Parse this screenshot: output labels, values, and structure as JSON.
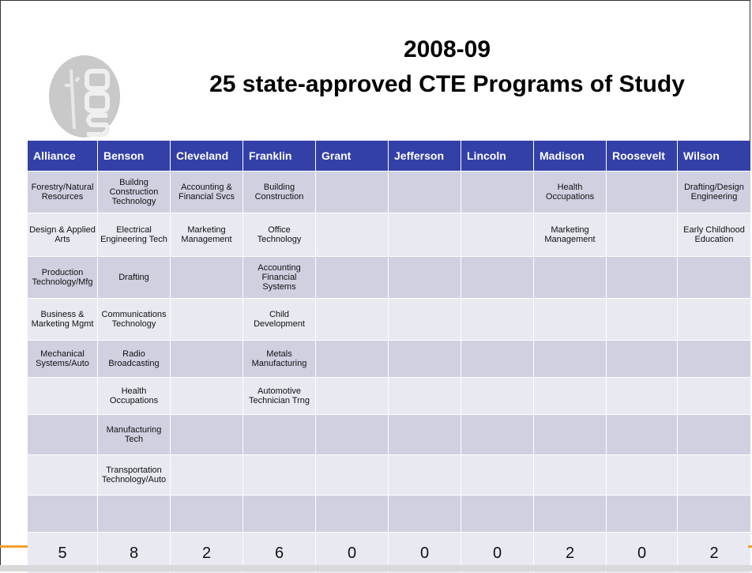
{
  "title": {
    "line1": "2008-09",
    "line2": "25 state-approved CTE Programs of Study"
  },
  "table": {
    "header": [
      "Alliance",
      "Benson",
      "Cleveland",
      "Franklin",
      "Grant",
      "Jefferson",
      "Lincoln",
      "Madison",
      "Roosevelt",
      "Wilson"
    ],
    "rows": [
      [
        "Forestry/Natural Resources",
        "Buildng Construction Technology",
        "Accounting & Financial Svcs",
        "Building Construction",
        null,
        null,
        null,
        "Health Occupations",
        null,
        "Drafting/Design Engineering"
      ],
      [
        "Design & Applied Arts",
        "Electrical Engineering Tech",
        "Marketing Management",
        "Office Technology",
        null,
        null,
        null,
        "Marketing Management",
        null,
        "Early Childhood Education"
      ],
      [
        "Production Technology/Mfg",
        "Drafting",
        null,
        "Accounting Financial Systems",
        null,
        null,
        null,
        null,
        null,
        null
      ],
      [
        "Business & Marketing Mgmt",
        "Communications Technology",
        null,
        "Child Development",
        null,
        null,
        null,
        null,
        null,
        null
      ],
      [
        "Mechanical Systems/Auto",
        "Radio Broadcasting",
        null,
        "Metals Manufacturing",
        null,
        null,
        null,
        null,
        null,
        null
      ],
      [
        null,
        "Health Occupations",
        null,
        "Automotive Technician Trng",
        null,
        null,
        null,
        null,
        null,
        null
      ],
      [
        null,
        "Manufacturing Tech",
        null,
        null,
        null,
        null,
        null,
        null,
        null,
        null
      ],
      [
        null,
        "Transportation Technology/Auto",
        null,
        null,
        null,
        null,
        null,
        null,
        null,
        null
      ],
      [
        null,
        null,
        null,
        null,
        null,
        null,
        null,
        null,
        null,
        null
      ]
    ],
    "totals": [
      5,
      8,
      2,
      6,
      0,
      0,
      0,
      2,
      0,
      2
    ]
  }
}
